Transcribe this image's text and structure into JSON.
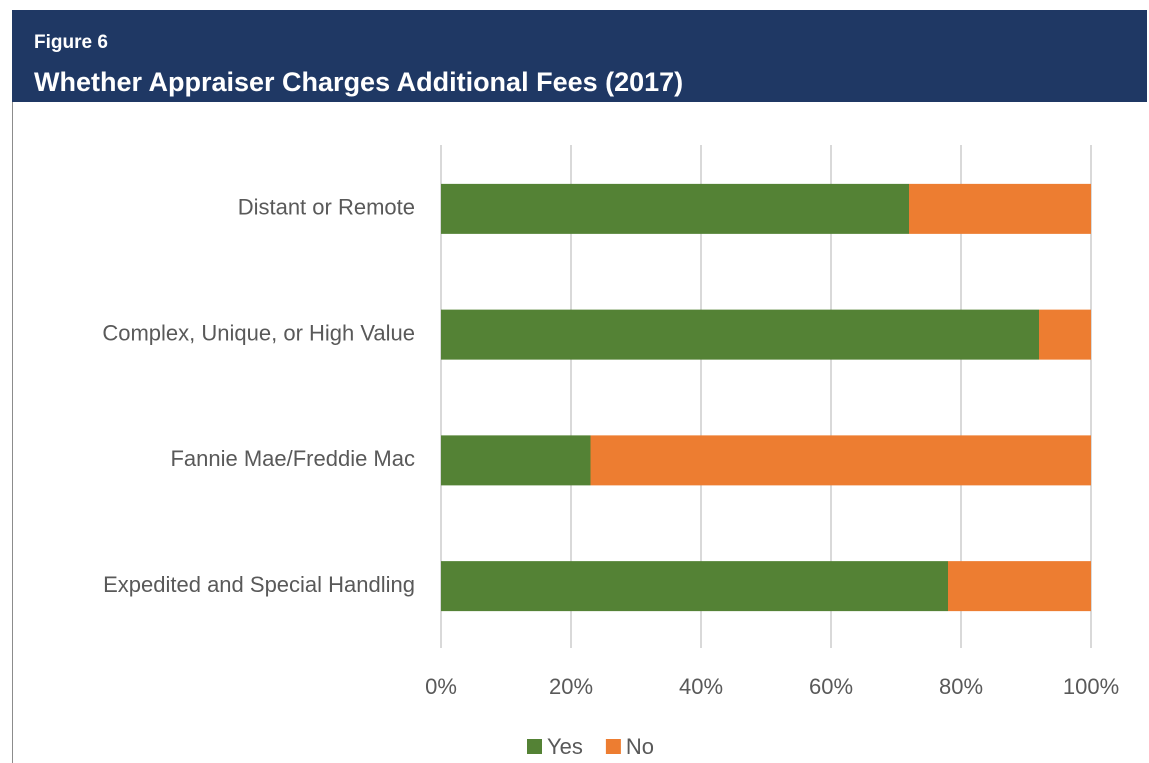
{
  "chart_data": {
    "type": "stacked_barh",
    "label": "Figure 6",
    "title": "Whether Appraiser Charges Additional Fees (2017)",
    "categories": [
      "Distant or Remote",
      "Complex, Unique, or High Value",
      "Fannie Mae/Freddie Mac",
      "Expedited and Special Handling"
    ],
    "series": [
      {
        "name": "Yes",
        "color": "#548235",
        "values": [
          72,
          92,
          23,
          78
        ]
      },
      {
        "name": "No",
        "color": "#ed7d31",
        "values": [
          28,
          8,
          77,
          22
        ]
      }
    ],
    "xlim": [
      0,
      100
    ],
    "xticks": [
      {
        "value": 0,
        "label": "0%"
      },
      {
        "value": 20,
        "label": "20%"
      },
      {
        "value": 40,
        "label": "40%"
      },
      {
        "value": 60,
        "label": "60%"
      },
      {
        "value": 80,
        "label": "80%"
      },
      {
        "value": 100,
        "label": "100%"
      }
    ],
    "grid": true,
    "legend": "bottom"
  }
}
